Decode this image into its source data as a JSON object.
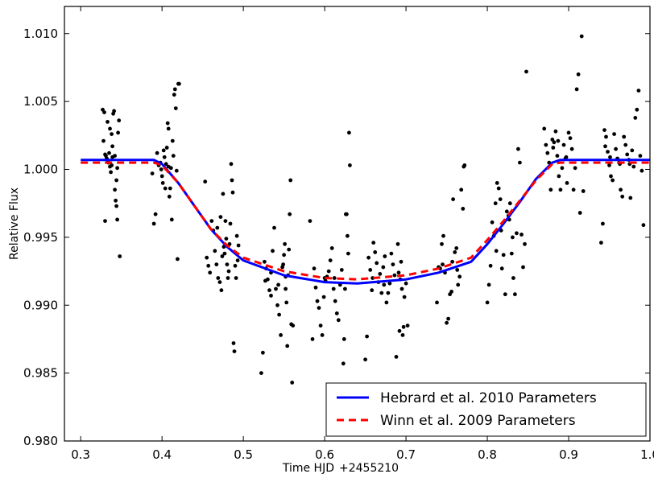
{
  "chart_data": {
    "type": "scatter",
    "xlabel": "Time HJD",
    "x_offset_label": "+2455210",
    "ylabel": "Relative Flux",
    "xlim": [
      0.28,
      1.0
    ],
    "ylim": [
      0.98,
      1.012
    ],
    "xticks": [
      0.3,
      0.4,
      0.5,
      0.6,
      0.7,
      0.8,
      0.9,
      1.0
    ],
    "xtick_labels": [
      "0.3",
      "0.4",
      "0.5",
      "0.6",
      "0.7",
      "0.8",
      "0.9",
      "1.0"
    ],
    "yticks": [
      0.98,
      0.985,
      0.99,
      0.995,
      1.0,
      1.005,
      1.01
    ],
    "ytick_labels": [
      "0.980",
      "0.985",
      "0.990",
      "0.995",
      "1.000",
      "1.005",
      "1.010"
    ],
    "grid": false,
    "legend_position": "bottom-right",
    "point_color": "#000000",
    "observations": [
      {
        "x": 0.327,
        "y": 1.0044
      },
      {
        "x": 0.329,
        "y": 1.0042
      },
      {
        "x": 0.328,
        "y": 1.0021
      },
      {
        "x": 0.33,
        "y": 1.0011
      },
      {
        "x": 0.331,
        "y": 1.001
      },
      {
        "x": 0.332,
        "y": 1.0008
      },
      {
        "x": 0.333,
        "y": 1.0007
      },
      {
        "x": 0.334,
        "y": 1.0005
      },
      {
        "x": 0.335,
        "y": 1.0012
      },
      {
        "x": 0.336,
        "y": 1.0002
      },
      {
        "x": 0.337,
        "y": 0.9998
      },
      {
        "x": 0.338,
        "y": 1.0003
      },
      {
        "x": 0.339,
        "y": 1.0017
      },
      {
        "x": 0.34,
        "y": 1.0041
      },
      {
        "x": 0.341,
        "y": 1.0043
      },
      {
        "x": 0.342,
        "y": 0.9985
      },
      {
        "x": 0.343,
        "y": 0.9977
      },
      {
        "x": 0.344,
        "y": 0.9973
      },
      {
        "x": 0.345,
        "y": 1.0001
      },
      {
        "x": 0.346,
        "y": 1.0027
      },
      {
        "x": 0.347,
        "y": 1.0036
      },
      {
        "x": 0.33,
        "y": 0.9962
      },
      {
        "x": 0.345,
        "y": 0.9963
      },
      {
        "x": 0.348,
        "y": 0.9936
      },
      {
        "x": 0.333,
        "y": 1.0035
      },
      {
        "x": 0.336,
        "y": 1.003
      },
      {
        "x": 0.338,
        "y": 1.0026
      },
      {
        "x": 0.339,
        "y": 1.0009
      },
      {
        "x": 0.342,
        "y": 1.001
      },
      {
        "x": 0.344,
        "y": 0.9992
      },
      {
        "x": 0.388,
        "y": 0.9997
      },
      {
        "x": 0.39,
        "y": 0.996
      },
      {
        "x": 0.392,
        "y": 0.9967
      },
      {
        "x": 0.394,
        "y": 1.0012
      },
      {
        "x": 0.396,
        "y": 1.0003
      },
      {
        "x": 0.398,
        "y": 1.0005
      },
      {
        "x": 0.4,
        "y": 0.9995
      },
      {
        "x": 0.401,
        "y": 0.999
      },
      {
        "x": 0.402,
        "y": 1.0014
      },
      {
        "x": 0.403,
        "y": 1.0009
      },
      {
        "x": 0.404,
        "y": 0.9986
      },
      {
        "x": 0.405,
        "y": 1.0004
      },
      {
        "x": 0.406,
        "y": 1.0016
      },
      {
        "x": 0.407,
        "y": 1.0034
      },
      {
        "x": 0.408,
        "y": 1.003
      },
      {
        "x": 0.409,
        "y": 0.998
      },
      {
        "x": 0.41,
        "y": 0.9986
      },
      {
        "x": 0.411,
        "y": 1.0001
      },
      {
        "x": 0.412,
        "y": 0.9963
      },
      {
        "x": 0.413,
        "y": 1.0021
      },
      {
        "x": 0.414,
        "y": 1.001
      },
      {
        "x": 0.415,
        "y": 1.0055
      },
      {
        "x": 0.416,
        "y": 1.0059
      },
      {
        "x": 0.417,
        "y": 1.0045
      },
      {
        "x": 0.418,
        "y": 0.9999
      },
      {
        "x": 0.419,
        "y": 0.9934
      },
      {
        "x": 0.42,
        "y": 1.0063
      },
      {
        "x": 0.421,
        "y": 1.0063
      },
      {
        "x": 0.399,
        "y": 1.0
      },
      {
        "x": 0.408,
        "y": 1.0002
      },
      {
        "x": 0.453,
        "y": 0.9991
      },
      {
        "x": 0.455,
        "y": 0.9935
      },
      {
        "x": 0.457,
        "y": 0.9929
      },
      {
        "x": 0.459,
        "y": 0.9924
      },
      {
        "x": 0.461,
        "y": 0.9962
      },
      {
        "x": 0.463,
        "y": 0.9955
      },
      {
        "x": 0.465,
        "y": 0.994
      },
      {
        "x": 0.467,
        "y": 0.993
      },
      {
        "x": 0.469,
        "y": 0.992
      },
      {
        "x": 0.471,
        "y": 0.9917
      },
      {
        "x": 0.473,
        "y": 0.9911
      },
      {
        "x": 0.474,
        "y": 0.9936
      },
      {
        "x": 0.475,
        "y": 0.9982
      },
      {
        "x": 0.476,
        "y": 0.9943
      },
      {
        "x": 0.477,
        "y": 0.9938
      },
      {
        "x": 0.478,
        "y": 0.9962
      },
      {
        "x": 0.479,
        "y": 0.9949
      },
      {
        "x": 0.48,
        "y": 0.993
      },
      {
        "x": 0.481,
        "y": 0.992
      },
      {
        "x": 0.482,
        "y": 0.9925
      },
      {
        "x": 0.483,
        "y": 0.9945
      },
      {
        "x": 0.484,
        "y": 0.996
      },
      {
        "x": 0.485,
        "y": 1.0004
      },
      {
        "x": 0.486,
        "y": 0.9992
      },
      {
        "x": 0.487,
        "y": 0.9983
      },
      {
        "x": 0.488,
        "y": 0.9872
      },
      {
        "x": 0.489,
        "y": 0.9866
      },
      {
        "x": 0.49,
        "y": 0.9929
      },
      {
        "x": 0.491,
        "y": 0.992
      },
      {
        "x": 0.492,
        "y": 0.9951
      },
      {
        "x": 0.493,
        "y": 0.9933
      },
      {
        "x": 0.494,
        "y": 0.9944
      },
      {
        "x": 0.468,
        "y": 0.9957
      },
      {
        "x": 0.472,
        "y": 0.9965
      },
      {
        "x": 0.522,
        "y": 0.985
      },
      {
        "x": 0.524,
        "y": 0.9865
      },
      {
        "x": 0.526,
        "y": 0.9932
      },
      {
        "x": 0.528,
        "y": 0.9927
      },
      {
        "x": 0.53,
        "y": 0.9919
      },
      {
        "x": 0.532,
        "y": 0.9911
      },
      {
        "x": 0.534,
        "y": 0.9907
      },
      {
        "x": 0.536,
        "y": 0.994
      },
      {
        "x": 0.538,
        "y": 0.9957
      },
      {
        "x": 0.54,
        "y": 0.9912
      },
      {
        "x": 0.542,
        "y": 0.99
      },
      {
        "x": 0.544,
        "y": 0.9893
      },
      {
        "x": 0.546,
        "y": 0.9878
      },
      {
        "x": 0.548,
        "y": 0.9928
      },
      {
        "x": 0.55,
        "y": 0.9937
      },
      {
        "x": 0.551,
        "y": 0.9945
      },
      {
        "x": 0.552,
        "y": 0.9912
      },
      {
        "x": 0.553,
        "y": 0.9902
      },
      {
        "x": 0.554,
        "y": 0.987
      },
      {
        "x": 0.555,
        "y": 0.9922
      },
      {
        "x": 0.556,
        "y": 0.9941
      },
      {
        "x": 0.557,
        "y": 0.9967
      },
      {
        "x": 0.558,
        "y": 0.9992
      },
      {
        "x": 0.559,
        "y": 0.9886
      },
      {
        "x": 0.56,
        "y": 0.9843
      },
      {
        "x": 0.561,
        "y": 0.9885
      },
      {
        "x": 0.534,
        "y": 0.9924
      },
      {
        "x": 0.543,
        "y": 0.9915
      },
      {
        "x": 0.549,
        "y": 0.993
      },
      {
        "x": 0.552,
        "y": 0.9921
      },
      {
        "x": 0.527,
        "y": 0.9918
      },
      {
        "x": 0.582,
        "y": 0.9962
      },
      {
        "x": 0.585,
        "y": 0.9875
      },
      {
        "x": 0.587,
        "y": 0.9927
      },
      {
        "x": 0.589,
        "y": 0.9913
      },
      {
        "x": 0.591,
        "y": 0.9903
      },
      {
        "x": 0.593,
        "y": 0.9898
      },
      {
        "x": 0.595,
        "y": 0.9885
      },
      {
        "x": 0.597,
        "y": 0.9878
      },
      {
        "x": 0.599,
        "y": 0.9906
      },
      {
        "x": 0.601,
        "y": 0.9918
      },
      {
        "x": 0.603,
        "y": 0.9921
      },
      {
        "x": 0.605,
        "y": 0.9925
      },
      {
        "x": 0.607,
        "y": 0.9933
      },
      {
        "x": 0.609,
        "y": 0.9942
      },
      {
        "x": 0.611,
        "y": 0.9912
      },
      {
        "x": 0.613,
        "y": 0.9903
      },
      {
        "x": 0.615,
        "y": 0.9894
      },
      {
        "x": 0.617,
        "y": 0.9889
      },
      {
        "x": 0.619,
        "y": 0.9915
      },
      {
        "x": 0.621,
        "y": 0.9926
      },
      {
        "x": 0.623,
        "y": 0.9857
      },
      {
        "x": 0.624,
        "y": 0.9875
      },
      {
        "x": 0.625,
        "y": 0.9912
      },
      {
        "x": 0.626,
        "y": 0.9967
      },
      {
        "x": 0.627,
        "y": 0.9967
      },
      {
        "x": 0.628,
        "y": 0.9951
      },
      {
        "x": 0.629,
        "y": 0.9938
      },
      {
        "x": 0.63,
        "y": 1.0027
      },
      {
        "x": 0.631,
        "y": 1.0003
      },
      {
        "x": 0.6,
        "y": 0.992
      },
      {
        "x": 0.612,
        "y": 0.992
      },
      {
        "x": 0.65,
        "y": 0.986
      },
      {
        "x": 0.652,
        "y": 0.9877
      },
      {
        "x": 0.654,
        "y": 0.9935
      },
      {
        "x": 0.656,
        "y": 0.9926
      },
      {
        "x": 0.658,
        "y": 0.9911
      },
      {
        "x": 0.66,
        "y": 0.9946
      },
      {
        "x": 0.662,
        "y": 0.9939
      },
      {
        "x": 0.664,
        "y": 0.9931
      },
      {
        "x": 0.666,
        "y": 0.9917
      },
      {
        "x": 0.668,
        "y": 0.9923
      },
      {
        "x": 0.67,
        "y": 0.9909
      },
      {
        "x": 0.672,
        "y": 0.9928
      },
      {
        "x": 0.674,
        "y": 0.9936
      },
      {
        "x": 0.676,
        "y": 0.9902
      },
      {
        "x": 0.678,
        "y": 0.9909
      },
      {
        "x": 0.68,
        "y": 0.9916
      },
      {
        "x": 0.682,
        "y": 0.9938
      },
      {
        "x": 0.684,
        "y": 0.993
      },
      {
        "x": 0.686,
        "y": 0.9922
      },
      {
        "x": 0.688,
        "y": 0.9862
      },
      {
        "x": 0.69,
        "y": 0.9945
      },
      {
        "x": 0.691,
        "y": 0.9924
      },
      {
        "x": 0.692,
        "y": 0.9881
      },
      {
        "x": 0.693,
        "y": 0.9919
      },
      {
        "x": 0.694,
        "y": 0.9932
      },
      {
        "x": 0.695,
        "y": 0.9912
      },
      {
        "x": 0.696,
        "y": 0.9878
      },
      {
        "x": 0.697,
        "y": 0.9884
      },
      {
        "x": 0.698,
        "y": 0.9906
      },
      {
        "x": 0.7,
        "y": 0.9916
      },
      {
        "x": 0.702,
        "y": 0.9885
      },
      {
        "x": 0.659,
        "y": 0.992
      },
      {
        "x": 0.673,
        "y": 0.9915
      },
      {
        "x": 0.74,
        "y": 0.9928
      },
      {
        "x": 0.742,
        "y": 0.9927
      },
      {
        "x": 0.744,
        "y": 0.9945
      },
      {
        "x": 0.746,
        "y": 0.9951
      },
      {
        "x": 0.748,
        "y": 0.9924
      },
      {
        "x": 0.75,
        "y": 0.9887
      },
      {
        "x": 0.752,
        "y": 0.989
      },
      {
        "x": 0.754,
        "y": 0.9908
      },
      {
        "x": 0.756,
        "y": 0.991
      },
      {
        "x": 0.758,
        "y": 0.9978
      },
      {
        "x": 0.76,
        "y": 0.9939
      },
      {
        "x": 0.762,
        "y": 0.9942
      },
      {
        "x": 0.764,
        "y": 0.9915
      },
      {
        "x": 0.766,
        "y": 0.9921
      },
      {
        "x": 0.768,
        "y": 0.9985
      },
      {
        "x": 0.77,
        "y": 0.9971
      },
      {
        "x": 0.771,
        "y": 1.0002
      },
      {
        "x": 0.772,
        "y": 1.0003
      },
      {
        "x": 0.738,
        "y": 0.9902
      },
      {
        "x": 0.745,
        "y": 0.993
      },
      {
        "x": 0.757,
        "y": 0.9932
      },
      {
        "x": 0.763,
        "y": 0.9926
      },
      {
        "x": 0.8,
        "y": 0.9902
      },
      {
        "x": 0.802,
        "y": 0.9915
      },
      {
        "x": 0.804,
        "y": 0.9929
      },
      {
        "x": 0.806,
        "y": 0.9961
      },
      {
        "x": 0.808,
        "y": 0.9951
      },
      {
        "x": 0.81,
        "y": 0.9975
      },
      {
        "x": 0.812,
        "y": 0.999
      },
      {
        "x": 0.814,
        "y": 0.9986
      },
      {
        "x": 0.816,
        "y": 0.9978
      },
      {
        "x": 0.818,
        "y": 0.9927
      },
      {
        "x": 0.82,
        "y": 0.9937
      },
      {
        "x": 0.822,
        "y": 0.9908
      },
      {
        "x": 0.824,
        "y": 0.9969
      },
      {
        "x": 0.826,
        "y": 0.9966
      },
      {
        "x": 0.828,
        "y": 0.9975
      },
      {
        "x": 0.83,
        "y": 0.9938
      },
      {
        "x": 0.832,
        "y": 0.992
      },
      {
        "x": 0.834,
        "y": 0.9908
      },
      {
        "x": 0.836,
        "y": 0.9953
      },
      {
        "x": 0.838,
        "y": 1.0015
      },
      {
        "x": 0.84,
        "y": 1.0005
      },
      {
        "x": 0.842,
        "y": 0.9952
      },
      {
        "x": 0.844,
        "y": 0.9928
      },
      {
        "x": 0.846,
        "y": 0.9945
      },
      {
        "x": 0.848,
        "y": 1.0072
      },
      {
        "x": 0.811,
        "y": 0.994
      },
      {
        "x": 0.817,
        "y": 0.9955
      },
      {
        "x": 0.827,
        "y": 0.9963
      },
      {
        "x": 0.831,
        "y": 0.995
      },
      {
        "x": 0.87,
        "y": 1.003
      },
      {
        "x": 0.872,
        "y": 1.0018
      },
      {
        "x": 0.874,
        "y": 1.0012
      },
      {
        "x": 0.876,
        "y": 1.0005
      },
      {
        "x": 0.878,
        "y": 0.9985
      },
      {
        "x": 0.88,
        "y": 1.0022
      },
      {
        "x": 0.882,
        "y": 1.002
      },
      {
        "x": 0.884,
        "y": 1.0028
      },
      {
        "x": 0.886,
        "y": 1.001
      },
      {
        "x": 0.888,
        "y": 0.9995
      },
      {
        "x": 0.89,
        "y": 0.9985
      },
      {
        "x": 0.892,
        "y": 1.0001
      },
      {
        "x": 0.894,
        "y": 1.0018
      },
      {
        "x": 0.896,
        "y": 1.0008
      },
      {
        "x": 0.898,
        "y": 0.999
      },
      {
        "x": 0.9,
        "y": 1.0027
      },
      {
        "x": 0.902,
        "y": 1.0023
      },
      {
        "x": 0.904,
        "y": 1.0015
      },
      {
        "x": 0.906,
        "y": 0.9985
      },
      {
        "x": 0.908,
        "y": 1.0001
      },
      {
        "x": 0.91,
        "y": 1.0059
      },
      {
        "x": 0.912,
        "y": 1.007
      },
      {
        "x": 0.914,
        "y": 0.9968
      },
      {
        "x": 0.916,
        "y": 1.0098
      },
      {
        "x": 0.918,
        "y": 0.9984
      },
      {
        "x": 0.881,
        "y": 1.0016
      },
      {
        "x": 0.887,
        "y": 1.0021
      },
      {
        "x": 0.897,
        "y": 1.0009
      },
      {
        "x": 0.94,
        "y": 0.9946
      },
      {
        "x": 0.942,
        "y": 0.996
      },
      {
        "x": 0.944,
        "y": 1.0029
      },
      {
        "x": 0.946,
        "y": 1.0024
      },
      {
        "x": 0.948,
        "y": 1.0013
      },
      {
        "x": 0.95,
        "y": 1.0003
      },
      {
        "x": 0.952,
        "y": 0.9995
      },
      {
        "x": 0.954,
        "y": 0.9992
      },
      {
        "x": 0.956,
        "y": 1.0026
      },
      {
        "x": 0.958,
        "y": 1.0015
      },
      {
        "x": 0.96,
        "y": 1.0008
      },
      {
        "x": 0.962,
        "y": 1.0005
      },
      {
        "x": 0.964,
        "y": 0.9985
      },
      {
        "x": 0.966,
        "y": 0.998
      },
      {
        "x": 0.968,
        "y": 1.0024
      },
      {
        "x": 0.97,
        "y": 1.0018
      },
      {
        "x": 0.972,
        "y": 1.0011
      },
      {
        "x": 0.974,
        "y": 1.0007
      },
      {
        "x": 0.976,
        "y": 0.9979
      },
      {
        "x": 0.978,
        "y": 1.0014
      },
      {
        "x": 0.98,
        "y": 1.0002
      },
      {
        "x": 0.982,
        "y": 1.0038
      },
      {
        "x": 0.984,
        "y": 1.0044
      },
      {
        "x": 0.986,
        "y": 1.0058
      },
      {
        "x": 0.988,
        "y": 1.001
      },
      {
        "x": 0.99,
        "y": 0.9999
      },
      {
        "x": 0.992,
        "y": 0.9959
      },
      {
        "x": 0.945,
        "y": 1.0017
      },
      {
        "x": 0.951,
        "y": 1.0009
      },
      {
        "x": 0.963,
        "y": 1.0004
      },
      {
        "x": 0.975,
        "y": 1.0004
      }
    ],
    "series": [
      {
        "name": "Hebrard et al. 2010 Parameters",
        "color": "#0000ff",
        "dash": "solid",
        "x": [
          0.3,
          0.39,
          0.4,
          0.42,
          0.44,
          0.46,
          0.48,
          0.5,
          0.55,
          0.6,
          0.64,
          0.7,
          0.74,
          0.78,
          0.8,
          0.82,
          0.84,
          0.86,
          0.88,
          0.89,
          1.0
        ],
        "y": [
          1.0007,
          1.0007,
          1.0004,
          0.999,
          0.9973,
          0.9956,
          0.9943,
          0.9933,
          0.9922,
          0.9917,
          0.9916,
          0.9919,
          0.9924,
          0.9932,
          0.9945,
          0.996,
          0.9976,
          0.9993,
          1.0005,
          1.0007,
          1.0007
        ]
      },
      {
        "name": "Winn et al. 2009 Parameters",
        "color": "#ff0000",
        "dash": "dashed",
        "x": [
          0.3,
          0.39,
          0.4,
          0.42,
          0.44,
          0.46,
          0.48,
          0.5,
          0.55,
          0.6,
          0.64,
          0.7,
          0.74,
          0.78,
          0.8,
          0.82,
          0.84,
          0.86,
          0.88,
          0.89,
          1.0
        ],
        "y": [
          1.0005,
          1.0005,
          1.0003,
          0.999,
          0.9973,
          0.9956,
          0.9944,
          0.9935,
          0.9925,
          0.992,
          0.9919,
          0.9922,
          0.9927,
          0.9935,
          0.9948,
          0.9962,
          0.9977,
          0.9992,
          1.0004,
          1.0005,
          1.0005
        ]
      }
    ]
  }
}
